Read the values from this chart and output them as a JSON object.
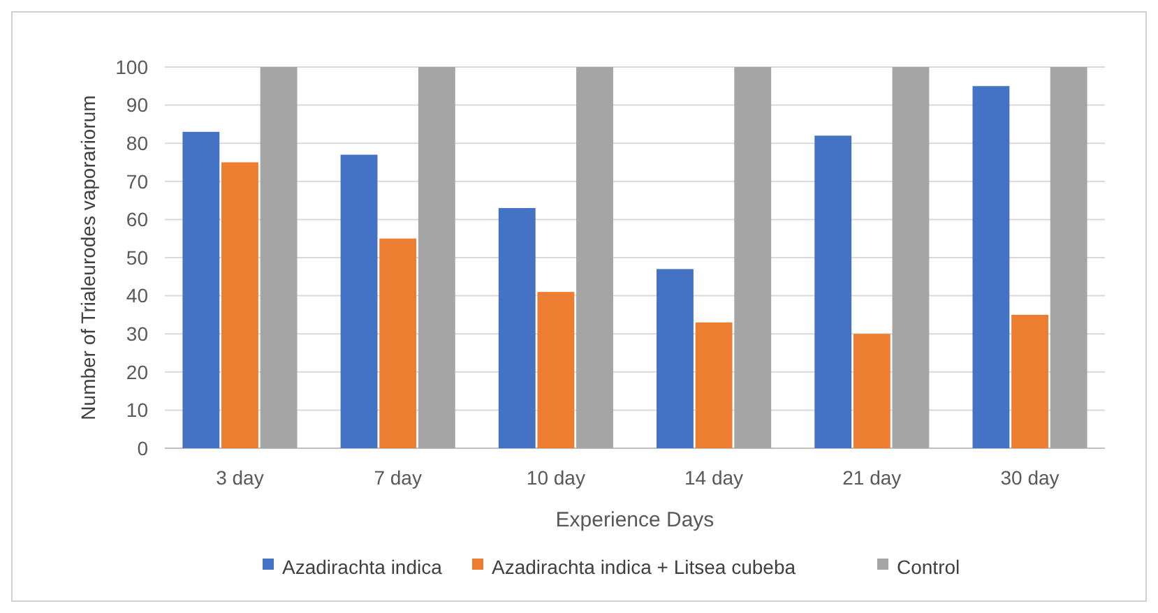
{
  "chart_data": {
    "type": "bar",
    "xlabel": "Experience Days",
    "ylabel": "Number of Trialeurodes vaporariorum",
    "categories": [
      "3 day",
      "7 day",
      "10 day",
      "14 day",
      "21 day",
      "30 day"
    ],
    "series": [
      {
        "name": "Azadirachta indica",
        "color": "#4472c4",
        "values": [
          83,
          77,
          63,
          47,
          82,
          95
        ]
      },
      {
        "name": "Azadirachta indica + Litsea cubeba",
        "color": "#ed7d31",
        "values": [
          75,
          55,
          41,
          33,
          30,
          35
        ]
      },
      {
        "name": "Control",
        "color": "#a5a5a5",
        "values": [
          100,
          100,
          100,
          100,
          100,
          100
        ]
      }
    ],
    "ylim": [
      0,
      100
    ],
    "yticks": [
      0,
      10,
      20,
      30,
      40,
      50,
      60,
      70,
      80,
      90,
      100
    ],
    "grid": "y",
    "legend": "bottom"
  }
}
